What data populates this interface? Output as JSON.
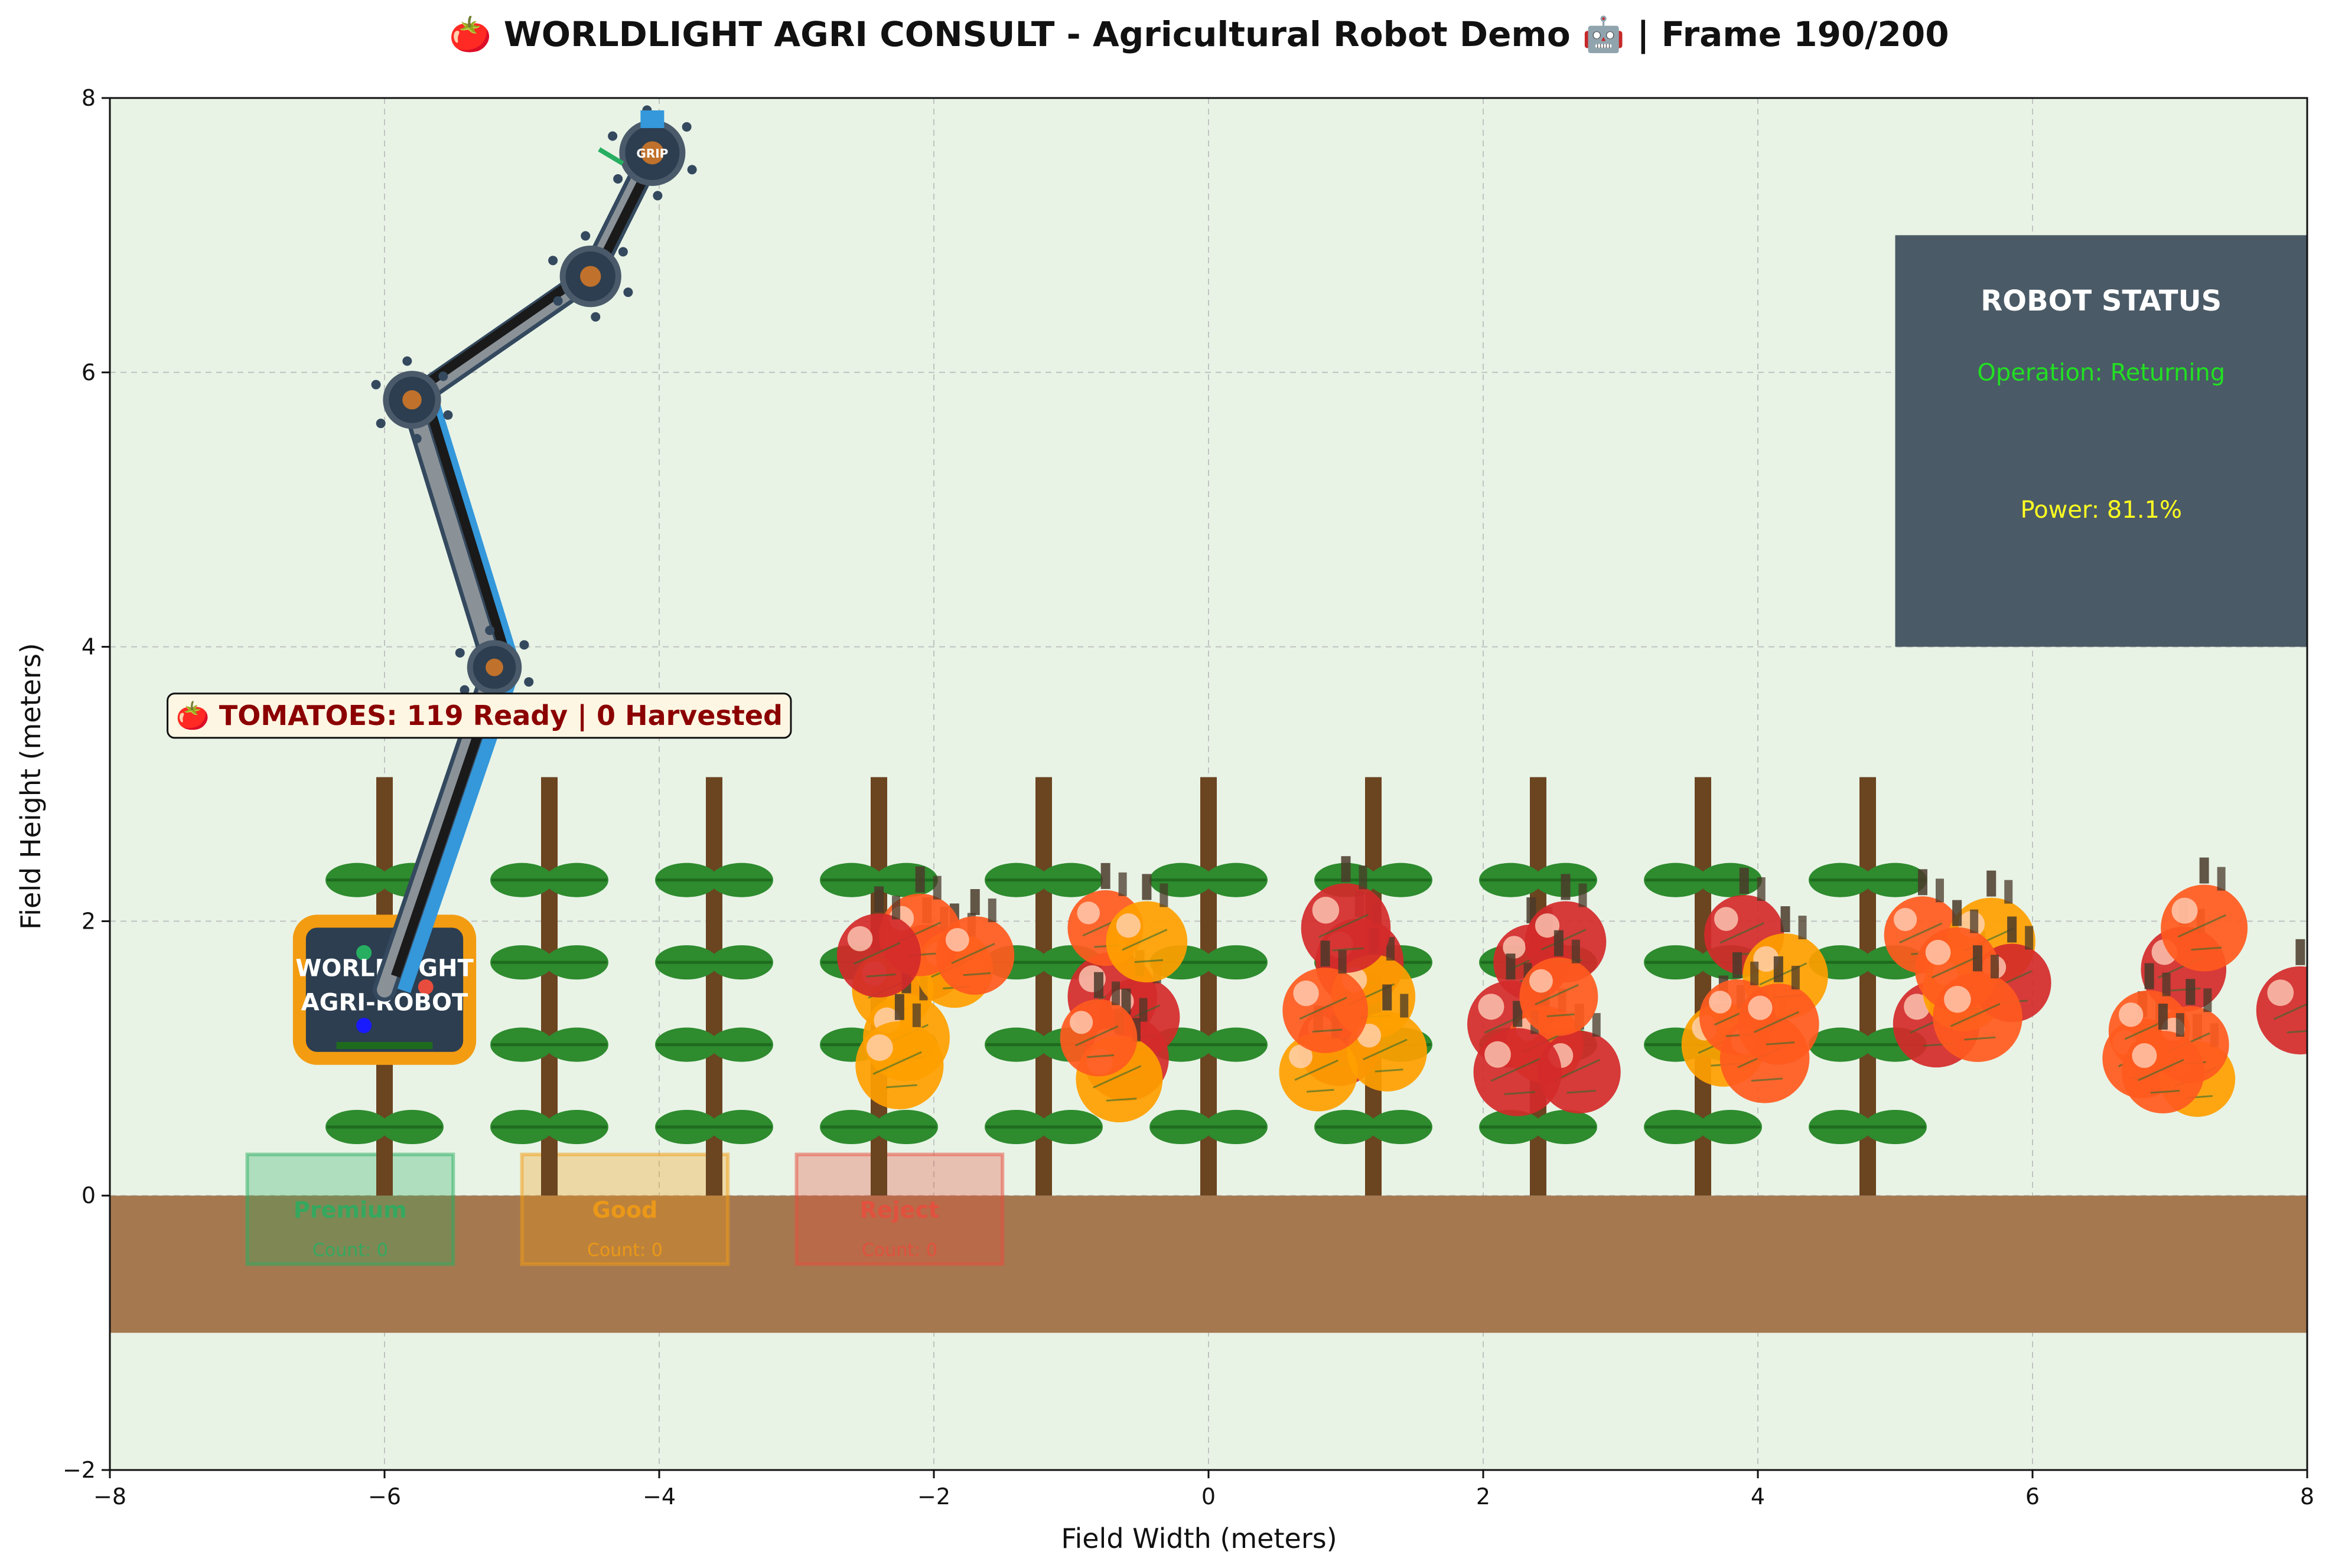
{
  "chart_data": {
    "type": "scatter",
    "title": "🍅 WORLDLIGHT AGRI CONSULT - Agricultural Robot Demo 🤖 | Frame 190/200",
    "xlabel": "Field Width (meters)",
    "ylabel": "Field Height (meters)",
    "xlim": [
      -8,
      8
    ],
    "ylim": [
      -2,
      8
    ],
    "xticks": [
      -8,
      -6,
      -4,
      -2,
      0,
      2,
      4,
      6,
      8
    ],
    "yticks": [
      -2,
      0,
      2,
      4,
      6,
      8
    ],
    "grid": true,
    "colors": {
      "background": "#e8f3e6",
      "soil": "#a57850",
      "stem": "#6b4420",
      "leaf": "#2e8b2e",
      "tomato_ripe": "#d42a2a",
      "tomato_orange": "#ff5a1e",
      "tomato_yellow": "#ffa000",
      "robot_dark": "#2c3e50",
      "robot_orange": "#f39c12",
      "arm_blue": "#3498db",
      "status_panel": "#4a5a66"
    },
    "plant_x": [
      -6,
      -4.8,
      -3.6,
      -2.4,
      -1.2,
      0,
      1.2,
      2.4,
      3.6,
      4.8
    ],
    "plant_height": 3.05,
    "leaf_levels": [
      0.5,
      1.1,
      1.7,
      2.3
    ],
    "soil": {
      "y_top": 0,
      "y_bottom": -1
    },
    "tomatoes": [
      {
        "x": -2.05,
        "y": 1.7,
        "c": "red"
      },
      {
        "x": -2.3,
        "y": 1.5,
        "c": "yellow"
      },
      {
        "x": -2.2,
        "y": 1.15,
        "c": "yellow"
      },
      {
        "x": -1.85,
        "y": 1.65,
        "c": "yellow"
      },
      {
        "x": -2.1,
        "y": 1.9,
        "c": "orange"
      },
      {
        "x": -2.25,
        "y": 0.95,
        "c": "yellow"
      },
      {
        "x": -1.7,
        "y": 1.75,
        "c": "orange"
      },
      {
        "x": -2.4,
        "y": 1.75,
        "c": "red"
      },
      {
        "x": -0.7,
        "y": 1.45,
        "c": "red"
      },
      {
        "x": -0.5,
        "y": 1.3,
        "c": "red"
      },
      {
        "x": -0.6,
        "y": 1.0,
        "c": "red"
      },
      {
        "x": -0.75,
        "y": 1.95,
        "c": "orange"
      },
      {
        "x": -0.45,
        "y": 1.85,
        "c": "yellow"
      },
      {
        "x": -0.65,
        "y": 0.85,
        "c": "yellow"
      },
      {
        "x": -0.8,
        "y": 1.15,
        "c": "orange"
      },
      {
        "x": 0.95,
        "y": 1.1,
        "c": "red"
      },
      {
        "x": 1.1,
        "y": 1.7,
        "c": "red"
      },
      {
        "x": 0.8,
        "y": 0.9,
        "c": "yellow"
      },
      {
        "x": 1.2,
        "y": 1.45,
        "c": "yellow"
      },
      {
        "x": 1.0,
        "y": 1.95,
        "c": "red"
      },
      {
        "x": 1.3,
        "y": 1.05,
        "c": "yellow"
      },
      {
        "x": 0.85,
        "y": 1.35,
        "c": "orange"
      },
      {
        "x": 2.35,
        "y": 1.7,
        "c": "red"
      },
      {
        "x": 2.6,
        "y": 1.85,
        "c": "red"
      },
      {
        "x": 2.2,
        "y": 1.25,
        "c": "red"
      },
      {
        "x": 2.45,
        "y": 1.1,
        "c": "orange"
      },
      {
        "x": 2.7,
        "y": 0.9,
        "c": "red"
      },
      {
        "x": 2.25,
        "y": 0.9,
        "c": "red"
      },
      {
        "x": 2.55,
        "y": 1.45,
        "c": "orange"
      },
      {
        "x": 3.75,
        "y": 1.1,
        "c": "yellow"
      },
      {
        "x": 4.05,
        "y": 1.0,
        "c": "orange"
      },
      {
        "x": 3.9,
        "y": 1.9,
        "c": "red"
      },
      {
        "x": 4.2,
        "y": 1.6,
        "c": "yellow"
      },
      {
        "x": 3.85,
        "y": 1.3,
        "c": "orange"
      },
      {
        "x": 4.15,
        "y": 1.25,
        "c": "orange"
      },
      {
        "x": 5.3,
        "y": 1.25,
        "c": "red"
      },
      {
        "x": 5.2,
        "y": 1.9,
        "c": "orange"
      },
      {
        "x": 5.5,
        "y": 1.5,
        "c": "yellow"
      },
      {
        "x": 5.7,
        "y": 1.85,
        "c": "yellow"
      },
      {
        "x": 5.85,
        "y": 1.55,
        "c": "red"
      },
      {
        "x": 5.45,
        "y": 1.65,
        "c": "orange"
      },
      {
        "x": 5.6,
        "y": 1.3,
        "c": "orange"
      },
      {
        "x": 6.8,
        "y": 1.0,
        "c": "orange"
      },
      {
        "x": 7.1,
        "y": 1.65,
        "c": "red"
      },
      {
        "x": 7.2,
        "y": 0.85,
        "c": "yellow"
      },
      {
        "x": 6.85,
        "y": 1.2,
        "c": "orange"
      },
      {
        "x": 7.25,
        "y": 1.95,
        "c": "orange"
      },
      {
        "x": 7.15,
        "y": 1.1,
        "c": "orange"
      },
      {
        "x": 6.95,
        "y": 0.9,
        "c": "orange"
      },
      {
        "x": 7.95,
        "y": 1.35,
        "c": "red"
      }
    ],
    "robot": {
      "base": {
        "x": -6,
        "y": 1.5,
        "label_line1": "WORLDLIGHT",
        "label_line2": "AGRI-ROBOT"
      },
      "arm_joints": [
        {
          "x": -6.0,
          "y": 1.5
        },
        {
          "x": -5.2,
          "y": 3.85
        },
        {
          "x": -5.8,
          "y": 5.8
        },
        {
          "x": -4.5,
          "y": 6.7
        },
        {
          "x": -4.05,
          "y": 7.6
        }
      ],
      "gripper_label": "GRIP"
    },
    "bins": [
      {
        "label": "Premium",
        "count_text": "Count: 0",
        "x0": -7,
        "x1": -5.5,
        "color": "#27ae60"
      },
      {
        "label": "Good",
        "count_text": "Count: 0",
        "x0": -5,
        "x1": -3.5,
        "color": "#f39c12"
      },
      {
        "label": "Reject",
        "count_text": "Count: 0",
        "x0": -3,
        "x1": -1.5,
        "color": "#e74c3c"
      }
    ],
    "counter_text": "🍅 TOMATOES: 119 Ready | 0 Harvested",
    "status": {
      "title": "ROBOT STATUS",
      "operation": "Operation: Returning",
      "power": "Power: 81.1%",
      "x0": 5,
      "x1": 8,
      "y0": 4,
      "y1": 7
    }
  }
}
